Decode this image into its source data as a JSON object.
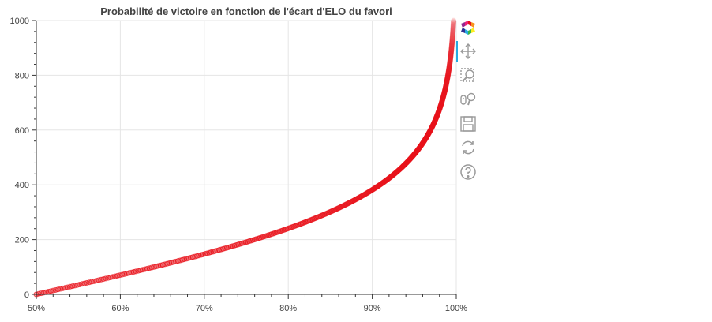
{
  "chart_data": {
    "type": "scatter",
    "title": "Probabilité de victoire en fonction de l'écart d'ELO du favori",
    "xlabel": "",
    "ylabel": "",
    "xlim": [
      0.5,
      1.0
    ],
    "ylim": [
      0,
      1000
    ],
    "x_ticks": [
      {
        "value": 0.5,
        "label": "50%"
      },
      {
        "value": 0.6,
        "label": "60%"
      },
      {
        "value": 0.7,
        "label": "70%"
      },
      {
        "value": 0.8,
        "label": "80%"
      },
      {
        "value": 0.9,
        "label": "90%"
      },
      {
        "value": 1.0,
        "label": "100%"
      }
    ],
    "y_ticks": [
      {
        "value": 0,
        "label": "0"
      },
      {
        "value": 200,
        "label": "200"
      },
      {
        "value": 400,
        "label": "400"
      },
      {
        "value": 600,
        "label": "600"
      },
      {
        "value": 800,
        "label": "800"
      },
      {
        "value": 1000,
        "label": "1000"
      }
    ],
    "grid": true,
    "marker_color": "#e8111a",
    "elo_step": 2,
    "elo_max": 1000,
    "points_note": "x = 1 / (1 + 10^(-y/400)) for y = 0..1000; markers fade as y approaches 1000"
  },
  "toolbar": {
    "tools": [
      {
        "name": "bokeh-logo-icon",
        "interactable": false
      },
      {
        "name": "pan-tool-icon",
        "interactable": true,
        "active": true
      },
      {
        "name": "box-zoom-tool-icon",
        "interactable": true
      },
      {
        "name": "wheel-zoom-tool-icon",
        "interactable": true
      },
      {
        "name": "save-tool-icon",
        "interactable": true
      },
      {
        "name": "reset-tool-icon",
        "interactable": true
      },
      {
        "name": "help-tool-icon",
        "interactable": true
      }
    ]
  },
  "colors": {
    "accent": "#26aae1",
    "grid": "#e5e5e5",
    "axis": "#444444",
    "text": "#444444"
  }
}
